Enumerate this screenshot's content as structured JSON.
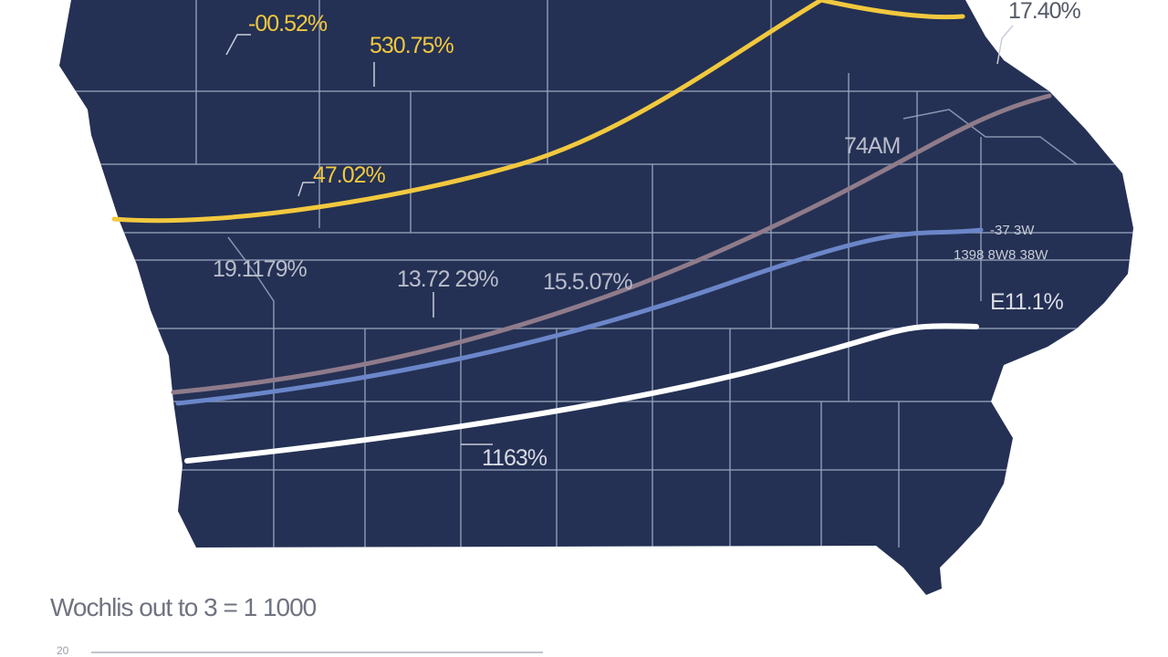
{
  "map": {
    "labels": [
      {
        "text": "-00.52%"
      },
      {
        "text": "530.75%"
      },
      {
        "text": "17.40%"
      },
      {
        "text": "47.02%"
      },
      {
        "text": "74AM"
      },
      {
        "text": "19.1179%"
      },
      {
        "text": "13.72 29%"
      },
      {
        "text": "15.5.07%"
      },
      {
        "text": "-37 3W"
      },
      {
        "text": "1398 8W8 38W"
      },
      {
        "text": "E11.1%"
      },
      {
        "text": "1163%"
      }
    ],
    "footer": {
      "scale": "Wochlis out to 3 = 1 1000",
      "tick": "20"
    }
  }
}
